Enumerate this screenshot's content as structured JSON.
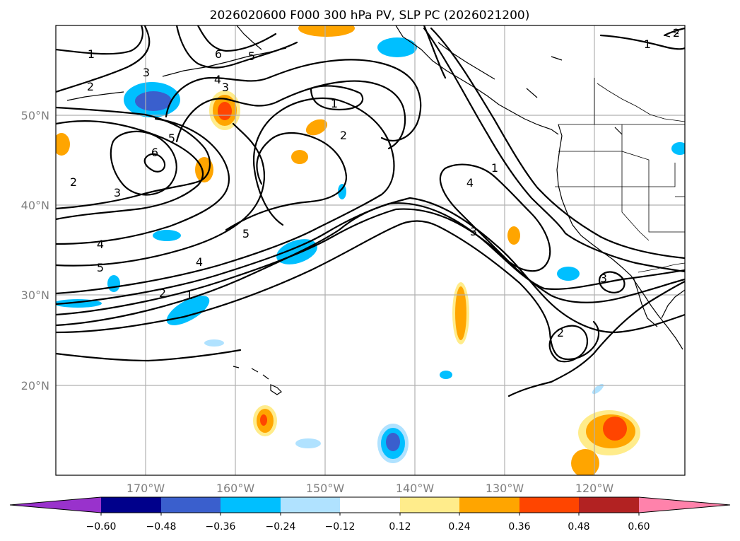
{
  "title": "2026020600 F000 300 hPa PV, SLP PC (2026021200)",
  "lat_labels": [
    "50°N",
    "40°N",
    "30°N",
    "20°N"
  ],
  "lon_labels": [
    "170°W",
    "160°W",
    "150°W",
    "140°W",
    "130°W",
    "120°W"
  ],
  "colorbar": {
    "ticks": [
      "−0.60",
      "−0.48",
      "−0.36",
      "−0.24",
      "−0.12",
      "0.12",
      "0.24",
      "0.36",
      "0.48",
      "0.60"
    ],
    "colors": [
      "#9932cc",
      "#00008b",
      "#3a5fcd",
      "#00bfff",
      "#b0e2ff",
      "#ffffff",
      "#ffec8b",
      "#ffa500",
      "#ff4500",
      "#b22222",
      "#ff82ab"
    ]
  },
  "contour_labels": [
    "1",
    "2",
    "3",
    "6",
    "5",
    "4",
    "3",
    "1",
    "2",
    "5",
    "6",
    "2",
    "3",
    "4",
    "5",
    "4",
    "2",
    "1",
    "5",
    "1",
    "4",
    "3",
    "3",
    "2",
    "1",
    "2"
  ]
}
